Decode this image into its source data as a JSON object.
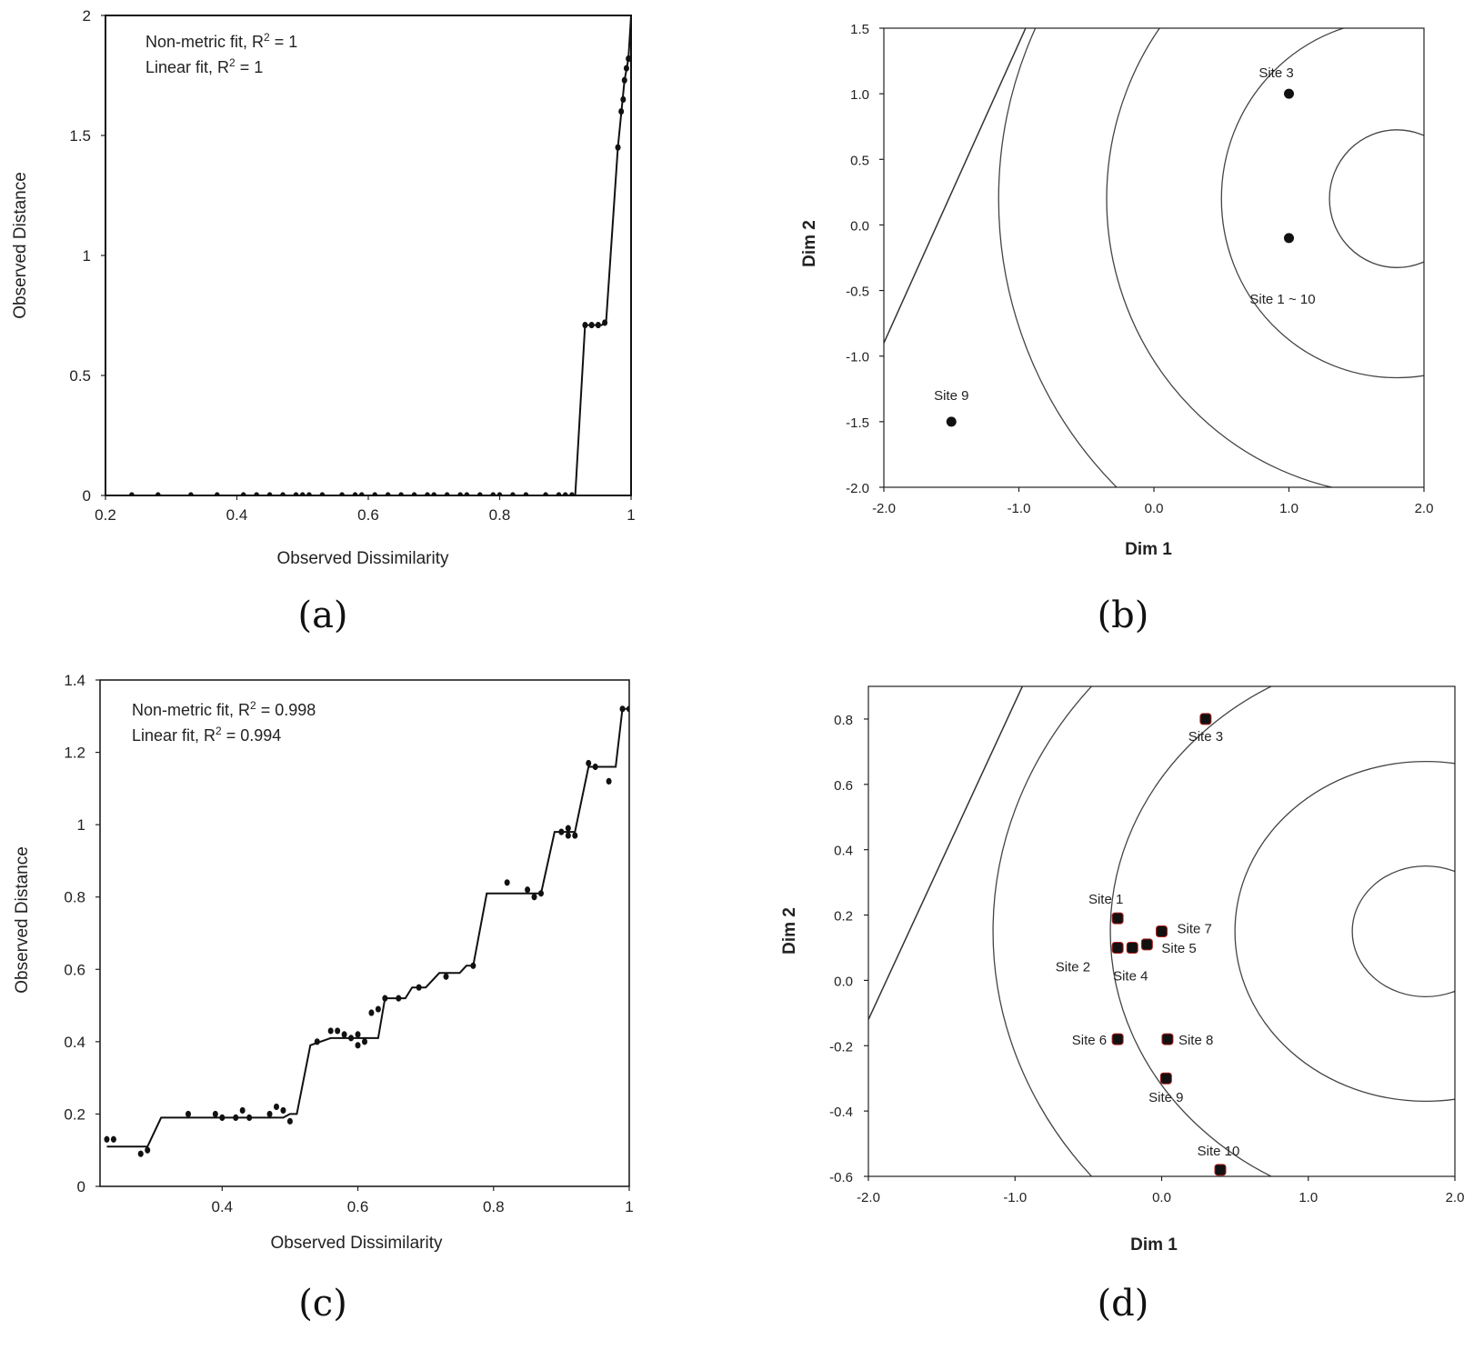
{
  "chart_data": [
    {
      "id": "a",
      "panel_label": "(a)",
      "type": "scatter",
      "xlabel": "Observed Dissimilarity",
      "ylabel": "Observed Distance",
      "xlim": [
        0.2,
        1.0
      ],
      "ylim": [
        0,
        2
      ],
      "xticks": [
        0.2,
        0.4,
        0.6,
        0.8,
        1
      ],
      "xtick_labels": [
        "0.2",
        "0.4",
        "0.6",
        "0.8",
        "1"
      ],
      "yticks": [
        0,
        0.5,
        1,
        1.5,
        2
      ],
      "ytick_labels": [
        "0",
        "0.5",
        "1",
        "1.5",
        "2"
      ],
      "annotations": [
        {
          "text": "Non-metric fit, R",
          "sup": "2",
          "rest": " = 1"
        },
        {
          "text": "Linear fit, R",
          "sup": "2",
          "rest": " = 1"
        }
      ],
      "points": [
        [
          0.24,
          0
        ],
        [
          0.28,
          0
        ],
        [
          0.33,
          0
        ],
        [
          0.37,
          0
        ],
        [
          0.41,
          0
        ],
        [
          0.43,
          0
        ],
        [
          0.45,
          0
        ],
        [
          0.47,
          0
        ],
        [
          0.49,
          0
        ],
        [
          0.5,
          0
        ],
        [
          0.51,
          0
        ],
        [
          0.53,
          0
        ],
        [
          0.56,
          0
        ],
        [
          0.58,
          0
        ],
        [
          0.59,
          0
        ],
        [
          0.61,
          0
        ],
        [
          0.63,
          0
        ],
        [
          0.65,
          0
        ],
        [
          0.67,
          0
        ],
        [
          0.69,
          0
        ],
        [
          0.7,
          0
        ],
        [
          0.72,
          0
        ],
        [
          0.74,
          0
        ],
        [
          0.75,
          0
        ],
        [
          0.77,
          0
        ],
        [
          0.79,
          0
        ],
        [
          0.8,
          0
        ],
        [
          0.82,
          0
        ],
        [
          0.84,
          0
        ],
        [
          0.87,
          0
        ],
        [
          0.89,
          0
        ],
        [
          0.9,
          0
        ],
        [
          0.91,
          0
        ],
        [
          0.93,
          0.71
        ],
        [
          0.94,
          0.71
        ],
        [
          0.95,
          0.71
        ],
        [
          0.96,
          0.72
        ],
        [
          0.98,
          1.45
        ],
        [
          0.985,
          1.6
        ],
        [
          0.988,
          1.65
        ],
        [
          0.99,
          1.73
        ],
        [
          0.993,
          1.78
        ],
        [
          0.996,
          1.82
        ],
        [
          1.0,
          1.82
        ]
      ],
      "fit": [
        [
          0.2,
          0
        ],
        [
          0.915,
          0
        ],
        [
          0.93,
          0.71
        ],
        [
          0.955,
          0.71
        ],
        [
          0.962,
          0.72
        ],
        [
          0.98,
          1.45
        ],
        [
          0.99,
          1.73
        ],
        [
          0.996,
          1.82
        ],
        [
          1.0,
          2.0
        ]
      ]
    },
    {
      "id": "b",
      "panel_label": "(b)",
      "type": "scatter",
      "xlabel": "Dim 1",
      "ylabel": "Dim 2",
      "xlim": [
        -2.0,
        2.0
      ],
      "ylim": [
        -2.0,
        1.5
      ],
      "xticks": [
        -2,
        -1,
        0,
        1,
        2
      ],
      "xtick_labels": [
        "-2.0",
        "-1.0",
        "0.0",
        "1.0",
        "2.0"
      ],
      "yticks": [
        -2,
        -1.5,
        -1,
        -0.5,
        0,
        0.5,
        1,
        1.5
      ],
      "ytick_labels": [
        "-2.0",
        "-1.5",
        "-1.0",
        "-0.5",
        "0.0",
        "0.5",
        "1.0",
        "1.5"
      ],
      "contour_center": [
        1.8,
        0.2
      ],
      "contour_radii": [
        0.5,
        1.3,
        2.15,
        2.95
      ],
      "line": [
        [
          -2.0,
          -0.9
        ],
        [
          -0.95,
          1.5
        ]
      ],
      "points": [
        {
          "x": 1.0,
          "y": 1.0,
          "label": "Site 3"
        },
        {
          "x": 1.0,
          "y": -0.1,
          "label": "Site 1 ~ 10"
        },
        {
          "x": -1.5,
          "y": -1.5,
          "label": "Site 9"
        }
      ]
    },
    {
      "id": "c",
      "panel_label": "(c)",
      "type": "scatter",
      "xlabel": "Observed Dissimilarity",
      "ylabel": "Observed Distance",
      "xlim": [
        0.22,
        1.0
      ],
      "ylim": [
        0,
        1.4
      ],
      "xticks": [
        0.4,
        0.6,
        0.8,
        1
      ],
      "xtick_labels": [
        "0.4",
        "0.6",
        "0.8",
        "1"
      ],
      "yticks": [
        0,
        0.2,
        0.4,
        0.6,
        0.8,
        1.0,
        1.2,
        1.4
      ],
      "ytick_labels": [
        "0",
        "0.2",
        "0.4",
        "0.6",
        "0.8",
        "1",
        "1.2",
        "1.4"
      ],
      "annotations": [
        {
          "text": "Non-metric fit, R",
          "sup": "2",
          "rest": " = 0.998"
        },
        {
          "text": "Linear fit, R",
          "sup": "2",
          "rest": " = 0.994"
        }
      ],
      "points": [
        [
          0.23,
          0.13
        ],
        [
          0.24,
          0.13
        ],
        [
          0.28,
          0.09
        ],
        [
          0.29,
          0.1
        ],
        [
          0.35,
          0.2
        ],
        [
          0.39,
          0.2
        ],
        [
          0.4,
          0.19
        ],
        [
          0.42,
          0.19
        ],
        [
          0.43,
          0.21
        ],
        [
          0.44,
          0.19
        ],
        [
          0.47,
          0.2
        ],
        [
          0.48,
          0.22
        ],
        [
          0.49,
          0.21
        ],
        [
          0.5,
          0.18
        ],
        [
          0.54,
          0.4
        ],
        [
          0.56,
          0.43
        ],
        [
          0.57,
          0.43
        ],
        [
          0.58,
          0.42
        ],
        [
          0.59,
          0.41
        ],
        [
          0.6,
          0.42
        ],
        [
          0.61,
          0.4
        ],
        [
          0.6,
          0.39
        ],
        [
          0.62,
          0.48
        ],
        [
          0.63,
          0.49
        ],
        [
          0.64,
          0.52
        ],
        [
          0.66,
          0.52
        ],
        [
          0.69,
          0.55
        ],
        [
          0.73,
          0.58
        ],
        [
          0.77,
          0.61
        ],
        [
          0.82,
          0.84
        ],
        [
          0.85,
          0.82
        ],
        [
          0.86,
          0.8
        ],
        [
          0.87,
          0.81
        ],
        [
          0.9,
          0.98
        ],
        [
          0.91,
          0.99
        ],
        [
          0.92,
          0.97
        ],
        [
          0.91,
          0.97
        ],
        [
          0.94,
          1.17
        ],
        [
          0.95,
          1.16
        ],
        [
          0.97,
          1.12
        ],
        [
          0.99,
          1.32
        ],
        [
          1.0,
          1.32
        ]
      ],
      "fit": [
        [
          0.23,
          0.11
        ],
        [
          0.29,
          0.11
        ],
        [
          0.31,
          0.19
        ],
        [
          0.49,
          0.19
        ],
        [
          0.5,
          0.2
        ],
        [
          0.51,
          0.2
        ],
        [
          0.53,
          0.39
        ],
        [
          0.56,
          0.41
        ],
        [
          0.63,
          0.41
        ],
        [
          0.64,
          0.52
        ],
        [
          0.67,
          0.52
        ],
        [
          0.68,
          0.55
        ],
        [
          0.7,
          0.55
        ],
        [
          0.72,
          0.59
        ],
        [
          0.75,
          0.59
        ],
        [
          0.76,
          0.61
        ],
        [
          0.77,
          0.61
        ],
        [
          0.79,
          0.81
        ],
        [
          0.85,
          0.81
        ],
        [
          0.87,
          0.81
        ],
        [
          0.89,
          0.98
        ],
        [
          0.92,
          0.98
        ],
        [
          0.94,
          1.16
        ],
        [
          0.98,
          1.16
        ],
        [
          0.99,
          1.32
        ],
        [
          1.0,
          1.32
        ]
      ]
    },
    {
      "id": "d",
      "panel_label": "(d)",
      "type": "scatter",
      "xlabel": "Dim 1",
      "ylabel": "Dim 2",
      "xlim": [
        -2.0,
        2.0
      ],
      "ylim": [
        -0.6,
        0.9
      ],
      "xticks": [
        -2,
        -1,
        0,
        1,
        2
      ],
      "xtick_labels": [
        "-2.0",
        "-1.0",
        "0.0",
        "1.0",
        "2.0"
      ],
      "yticks": [
        -0.6,
        -0.4,
        -0.2,
        0,
        0.2,
        0.4,
        0.6,
        0.8
      ],
      "ytick_labels": [
        "-0.6",
        "-0.4",
        "-0.2",
        "0.0",
        "0.2",
        "0.4",
        "0.6",
        "0.8"
      ],
      "contour_center": [
        1.8,
        0.15
      ],
      "contour_radii": [
        0.5,
        1.3,
        2.15,
        2.95
      ],
      "line": [
        [
          -2.0,
          -0.12
        ],
        [
          -0.95,
          0.9
        ]
      ],
      "points": [
        {
          "x": 0.3,
          "y": 0.8,
          "label": "Site 3"
        },
        {
          "x": -0.3,
          "y": 0.19,
          "label": "Site 1"
        },
        {
          "x": -0.3,
          "y": 0.1,
          "label": "Site 2"
        },
        {
          "x": -0.2,
          "y": 0.1,
          "label": "Site 4"
        },
        {
          "x": -0.1,
          "y": 0.11,
          "label": "Site 5"
        },
        {
          "x": 0.0,
          "y": 0.15,
          "label": "Site 7"
        },
        {
          "x": -0.3,
          "y": -0.18,
          "label": "Site 6"
        },
        {
          "x": 0.04,
          "y": -0.18,
          "label": "Site 8"
        },
        {
          "x": 0.03,
          "y": -0.3,
          "label": "Site 9"
        },
        {
          "x": 0.4,
          "y": -0.58,
          "label": "Site 10"
        }
      ]
    }
  ]
}
